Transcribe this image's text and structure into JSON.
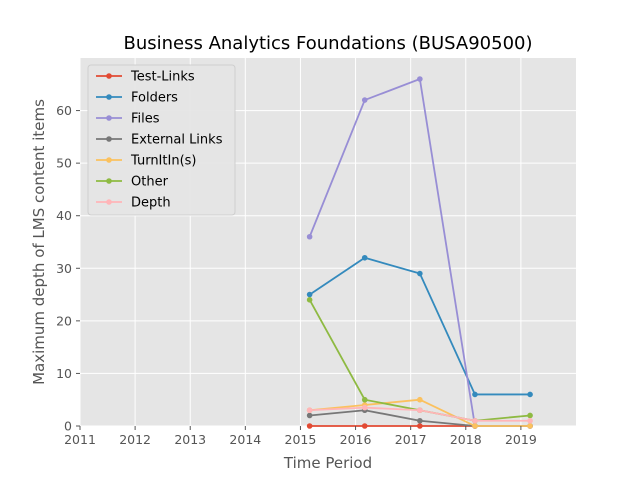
{
  "chart_data": {
    "type": "line",
    "title": "Business Analytics Foundations (BUSA90500)",
    "xlabel": "Time Period",
    "ylabel": "Maximum depth of LMS content items",
    "xlim": [
      2011,
      2020
    ],
    "ylim": [
      0,
      70
    ],
    "xticks": [
      "2011",
      "2012",
      "2013",
      "2014",
      "2015",
      "2016",
      "2017",
      "2018",
      "2019"
    ],
    "yticks": [
      "0",
      "10",
      "20",
      "30",
      "40",
      "50",
      "60"
    ],
    "grid": true,
    "legend_position": "top-left",
    "x": [
      "2015-03",
      "2016-03",
      "2017-03",
      "2018-03",
      "2019-03"
    ],
    "series": [
      {
        "name": "Test-Links",
        "color": "#E24A33",
        "values": [
          0,
          0,
          0,
          0,
          null
        ]
      },
      {
        "name": "Folders",
        "color": "#348ABD",
        "values": [
          25,
          32,
          29,
          6,
          6
        ]
      },
      {
        "name": "Files",
        "color": "#988ED5",
        "values": [
          36,
          62,
          66,
          0,
          0
        ]
      },
      {
        "name": "External Links",
        "color": "#777777",
        "values": [
          2,
          3,
          1,
          0,
          0
        ]
      },
      {
        "name": "TurnItIn(s)",
        "color": "#FBC15E",
        "values": [
          3,
          4,
          5,
          0,
          0
        ]
      },
      {
        "name": "Other",
        "color": "#8EBA42",
        "values": [
          24,
          5,
          3,
          1,
          2
        ]
      },
      {
        "name": "Depth",
        "color": "#FFB5B8",
        "values": [
          3,
          3.5,
          3,
          1,
          1
        ]
      }
    ]
  }
}
